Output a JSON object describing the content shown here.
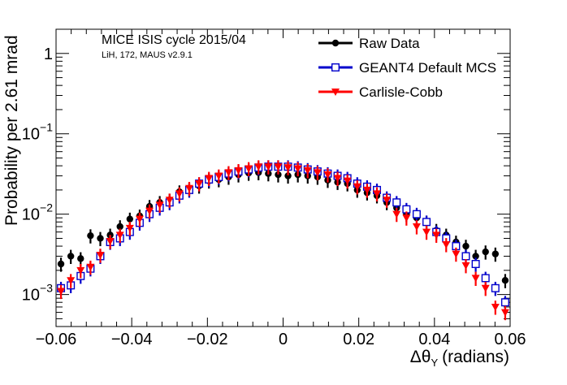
{
  "chart_data": {
    "type": "scatter",
    "title": "",
    "xlabel": "Δθ",
    "xlabel_sub": "Y",
    "xlabel_unit": "(radians)",
    "ylabel": "Probability per 2.61 mrad",
    "xlim": [
      -0.06,
      0.06
    ],
    "ylim": [
      0.0004,
      2
    ],
    "yscale": "log",
    "grid": false,
    "legend_position": "top-right",
    "x_ticks": [
      "−0.06",
      "−0.04",
      "−0.02",
      "0",
      "0.02",
      "0.04",
      "0.06"
    ],
    "x_tick_values": [
      -0.06,
      -0.04,
      -0.02,
      0,
      0.02,
      0.04,
      0.06
    ],
    "y_ticks": [
      {
        "base": "1",
        "exp": "",
        "value": 1
      },
      {
        "base": "10",
        "exp": "−1",
        "value": 0.1
      },
      {
        "base": "10",
        "exp": "−2",
        "value": 0.01
      },
      {
        "base": "10",
        "exp": "−3",
        "value": 0.001
      }
    ],
    "annotations": {
      "main": "MICE ISIS cycle 2015/04",
      "sub": "LiH, 172, MAUS v2.9.1"
    },
    "x": [
      -0.0587,
      -0.0561,
      -0.0535,
      -0.0509,
      -0.0483,
      -0.0457,
      -0.0431,
      -0.0405,
      -0.0379,
      -0.0353,
      -0.0326,
      -0.03,
      -0.0274,
      -0.0248,
      -0.0222,
      -0.0196,
      -0.017,
      -0.0144,
      -0.0118,
      -0.0091,
      -0.0065,
      -0.0039,
      -0.0013,
      0.0013,
      0.0039,
      0.0065,
      0.0091,
      0.0118,
      0.0144,
      0.017,
      0.0196,
      0.0222,
      0.0248,
      0.0274,
      0.03,
      0.0326,
      0.0353,
      0.0379,
      0.0405,
      0.0431,
      0.0457,
      0.0483,
      0.0509,
      0.0535,
      0.0561,
      0.0587
    ],
    "series": [
      {
        "name": "Raw Data",
        "color": "#000000",
        "marker": "circle",
        "values": [
          0.0024,
          0.003,
          0.0028,
          0.0054,
          0.005,
          0.0055,
          0.007,
          0.0087,
          0.0095,
          0.0125,
          0.014,
          0.015,
          0.019,
          0.0205,
          0.0225,
          0.026,
          0.027,
          0.029,
          0.031,
          0.0325,
          0.033,
          0.032,
          0.031,
          0.03,
          0.031,
          0.03,
          0.029,
          0.0265,
          0.025,
          0.024,
          0.02,
          0.0185,
          0.017,
          0.014,
          0.012,
          0.01,
          0.009,
          0.008,
          0.0063,
          0.0055,
          0.0045,
          0.004,
          0.003,
          0.0034,
          0.0032,
          0.0015
        ]
      },
      {
        "name": "GEANT4 Default MCS",
        "color": "#0000cc",
        "marker": "open-square",
        "values": [
          0.0012,
          0.0013,
          0.0017,
          0.0021,
          0.003,
          0.0045,
          0.005,
          0.006,
          0.0078,
          0.01,
          0.012,
          0.014,
          0.017,
          0.02,
          0.024,
          0.027,
          0.029,
          0.032,
          0.034,
          0.036,
          0.038,
          0.039,
          0.039,
          0.039,
          0.038,
          0.036,
          0.034,
          0.032,
          0.03,
          0.028,
          0.024,
          0.022,
          0.02,
          0.016,
          0.014,
          0.0115,
          0.01,
          0.008,
          0.006,
          0.005,
          0.004,
          0.003,
          0.0024,
          0.0016,
          0.0012,
          0.0008
        ]
      },
      {
        "name": "Carlisle-Cobb",
        "color": "#ff0000",
        "marker": "triangle-down",
        "values": [
          0.0011,
          0.0015,
          0.002,
          0.0022,
          0.0031,
          0.0046,
          0.0055,
          0.0067,
          0.0087,
          0.011,
          0.013,
          0.015,
          0.018,
          0.021,
          0.024,
          0.028,
          0.03,
          0.033,
          0.035,
          0.037,
          0.039,
          0.039,
          0.039,
          0.038,
          0.037,
          0.035,
          0.033,
          0.031,
          0.028,
          0.026,
          0.022,
          0.02,
          0.018,
          0.015,
          0.01,
          0.009,
          0.007,
          0.006,
          0.0055,
          0.0042,
          0.0032,
          0.0023,
          0.0016,
          0.0012,
          0.0007,
          0.0006
        ]
      }
    ]
  }
}
